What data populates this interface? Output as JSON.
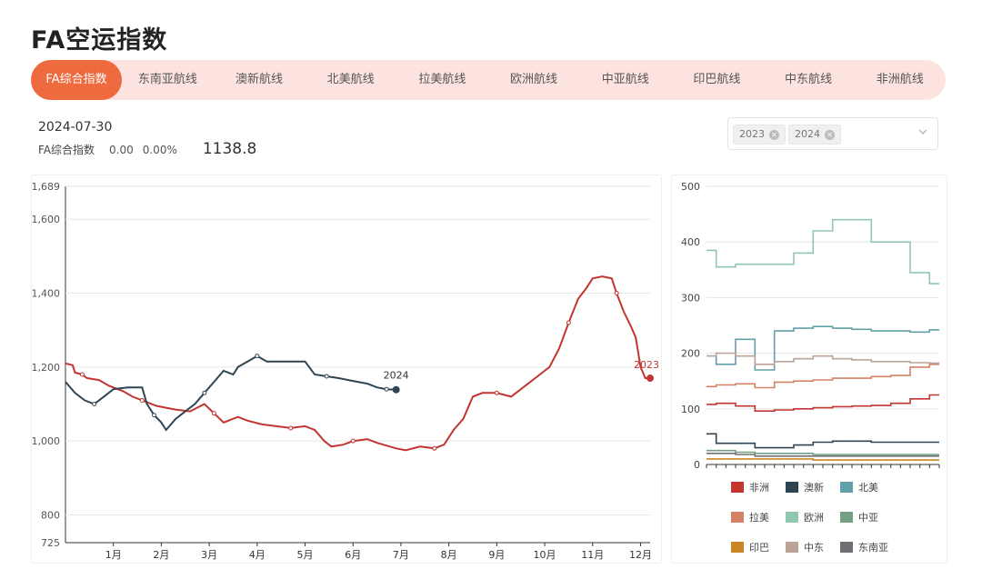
{
  "title": "FA空运指数",
  "tabs": [
    "FA综合指数",
    "东南亚航线",
    "澳新航线",
    "北美航线",
    "拉美航线",
    "欧洲航线",
    "中亚航线",
    "印巴航线",
    "中东航线",
    "非洲航线"
  ],
  "active_tab": 0,
  "summary": {
    "date": "2024-07-30",
    "label": "FA综合指数",
    "change": "0.00",
    "change_pct": "0.00%",
    "value": "1138.8"
  },
  "year_select": {
    "selected": [
      "2023",
      "2024"
    ]
  },
  "colors": {
    "y2023": "#c23531",
    "y2024": "#2f4554",
    "非洲": "#c23531",
    "澳新": "#2f4554",
    "北美": "#61a0a8",
    "拉美": "#d48265",
    "欧洲": "#91c7ae",
    "中亚": "#749f83",
    "印巴": "#ca8622",
    "中东": "#bda29a",
    "东南亚": "#6e7074"
  },
  "chart_data": [
    {
      "type": "line",
      "x": [
        "1月",
        "2月",
        "3月",
        "4月",
        "5月",
        "6月",
        "7月",
        "8月",
        "9月",
        "10月",
        "11月",
        "12月"
      ],
      "ylim": [
        725,
        1689
      ],
      "yticks": [
        "1,689",
        "1,600",
        "1,400",
        "1,200",
        "1,000",
        "800",
        "725"
      ],
      "series": [
        {
          "name": "2023",
          "end_label": "2023",
          "points": [
            [
              0,
              1210
            ],
            [
              0.15,
              1205
            ],
            [
              0.2,
              1185
            ],
            [
              0.35,
              1180
            ],
            [
              0.45,
              1170
            ],
            [
              0.7,
              1165
            ],
            [
              0.9,
              1150
            ],
            [
              1.2,
              1135
            ],
            [
              1.4,
              1120
            ],
            [
              1.6,
              1110
            ],
            [
              1.9,
              1095
            ],
            [
              2.1,
              1090
            ],
            [
              2.3,
              1085
            ],
            [
              2.6,
              1080
            ],
            [
              2.9,
              1100
            ],
            [
              3.1,
              1075
            ],
            [
              3.3,
              1050
            ],
            [
              3.6,
              1065
            ],
            [
              3.8,
              1055
            ],
            [
              4.1,
              1045
            ],
            [
              4.4,
              1040
            ],
            [
              4.7,
              1035
            ],
            [
              5.0,
              1040
            ],
            [
              5.2,
              1030
            ],
            [
              5.4,
              1000
            ],
            [
              5.55,
              985
            ],
            [
              5.8,
              990
            ],
            [
              6.0,
              1000
            ],
            [
              6.3,
              1005
            ],
            [
              6.5,
              995
            ],
            [
              6.9,
              980
            ],
            [
              7.1,
              975
            ],
            [
              7.4,
              985
            ],
            [
              7.7,
              980
            ],
            [
              7.9,
              990
            ],
            [
              8.1,
              1030
            ],
            [
              8.3,
              1060
            ],
            [
              8.5,
              1120
            ],
            [
              8.7,
              1130
            ],
            [
              9.0,
              1130
            ],
            [
              9.3,
              1120
            ],
            [
              9.6,
              1150
            ],
            [
              9.9,
              1180
            ],
            [
              10.1,
              1200
            ],
            [
              10.3,
              1250
            ],
            [
              10.5,
              1320
            ],
            [
              10.7,
              1385
            ],
            [
              10.85,
              1410
            ],
            [
              11.0,
              1440
            ],
            [
              11.2,
              1445
            ],
            [
              11.4,
              1440
            ],
            [
              11.5,
              1400
            ],
            [
              11.65,
              1350
            ],
            [
              11.8,
              1310
            ],
            [
              11.9,
              1280
            ],
            [
              12.0,
              1200
            ],
            [
              12.1,
              1170
            ],
            [
              12.2,
              1170
            ]
          ]
        },
        {
          "name": "2024",
          "end_label": "2024",
          "points": [
            [
              0,
              1160
            ],
            [
              0.2,
              1130
            ],
            [
              0.4,
              1110
            ],
            [
              0.6,
              1100
            ],
            [
              0.8,
              1120
            ],
            [
              1.0,
              1140
            ],
            [
              1.3,
              1145
            ],
            [
              1.6,
              1145
            ],
            [
              1.7,
              1100
            ],
            [
              1.85,
              1070
            ],
            [
              2.0,
              1050
            ],
            [
              2.1,
              1030
            ],
            [
              2.3,
              1060
            ],
            [
              2.5,
              1080
            ],
            [
              2.7,
              1100
            ],
            [
              2.9,
              1130
            ],
            [
              3.1,
              1160
            ],
            [
              3.3,
              1190
            ],
            [
              3.5,
              1180
            ],
            [
              3.6,
              1200
            ],
            [
              3.8,
              1215
            ],
            [
              4.0,
              1230
            ],
            [
              4.2,
              1215
            ],
            [
              4.5,
              1215
            ],
            [
              4.8,
              1215
            ],
            [
              5.0,
              1215
            ],
            [
              5.2,
              1180
            ],
            [
              5.45,
              1175
            ],
            [
              5.7,
              1170
            ],
            [
              5.9,
              1165
            ],
            [
              6.1,
              1160
            ],
            [
              6.3,
              1155
            ],
            [
              6.5,
              1145
            ],
            [
              6.7,
              1140
            ],
            [
              6.9,
              1138.8
            ]
          ]
        }
      ]
    },
    {
      "type": "line",
      "ylim": [
        0,
        500
      ],
      "yticks": [
        "500",
        "400",
        "300",
        "200",
        "100",
        "0"
      ],
      "series": [
        {
          "name": "非洲",
          "values": [
            108,
            110,
            105,
            96,
            98,
            100,
            102,
            104,
            105,
            106,
            110,
            118,
            125
          ]
        },
        {
          "name": "澳新",
          "values": [
            55,
            38,
            38,
            30,
            30,
            35,
            40,
            42,
            42,
            40,
            40,
            40,
            40
          ]
        },
        {
          "name": "北美",
          "values": [
            195,
            180,
            225,
            170,
            240,
            245,
            248,
            245,
            243,
            240,
            240,
            238,
            242
          ]
        },
        {
          "name": "拉美",
          "values": [
            140,
            143,
            145,
            138,
            148,
            150,
            152,
            155,
            155,
            158,
            160,
            175,
            180
          ]
        },
        {
          "name": "欧洲",
          "values": [
            385,
            355,
            360,
            360,
            360,
            380,
            420,
            440,
            440,
            400,
            400,
            345,
            325
          ]
        },
        {
          "name": "中亚",
          "values": [
            25,
            25,
            22,
            20,
            20,
            20,
            18,
            18,
            18,
            18,
            18,
            18,
            18
          ]
        },
        {
          "name": "印巴",
          "values": [
            10,
            10,
            10,
            10,
            10,
            10,
            8,
            8,
            8,
            8,
            8,
            8,
            8
          ]
        },
        {
          "name": "中东",
          "values": [
            195,
            200,
            195,
            180,
            185,
            190,
            195,
            190,
            188,
            185,
            185,
            183,
            182
          ]
        },
        {
          "name": "东南亚",
          "values": [
            20,
            20,
            18,
            15,
            15,
            15,
            15,
            15,
            15,
            15,
            15,
            15,
            15
          ]
        }
      ],
      "legend": [
        "非洲",
        "澳新",
        "北美",
        "拉美",
        "欧洲",
        "中亚",
        "印巴",
        "中东",
        "东南亚"
      ]
    }
  ]
}
